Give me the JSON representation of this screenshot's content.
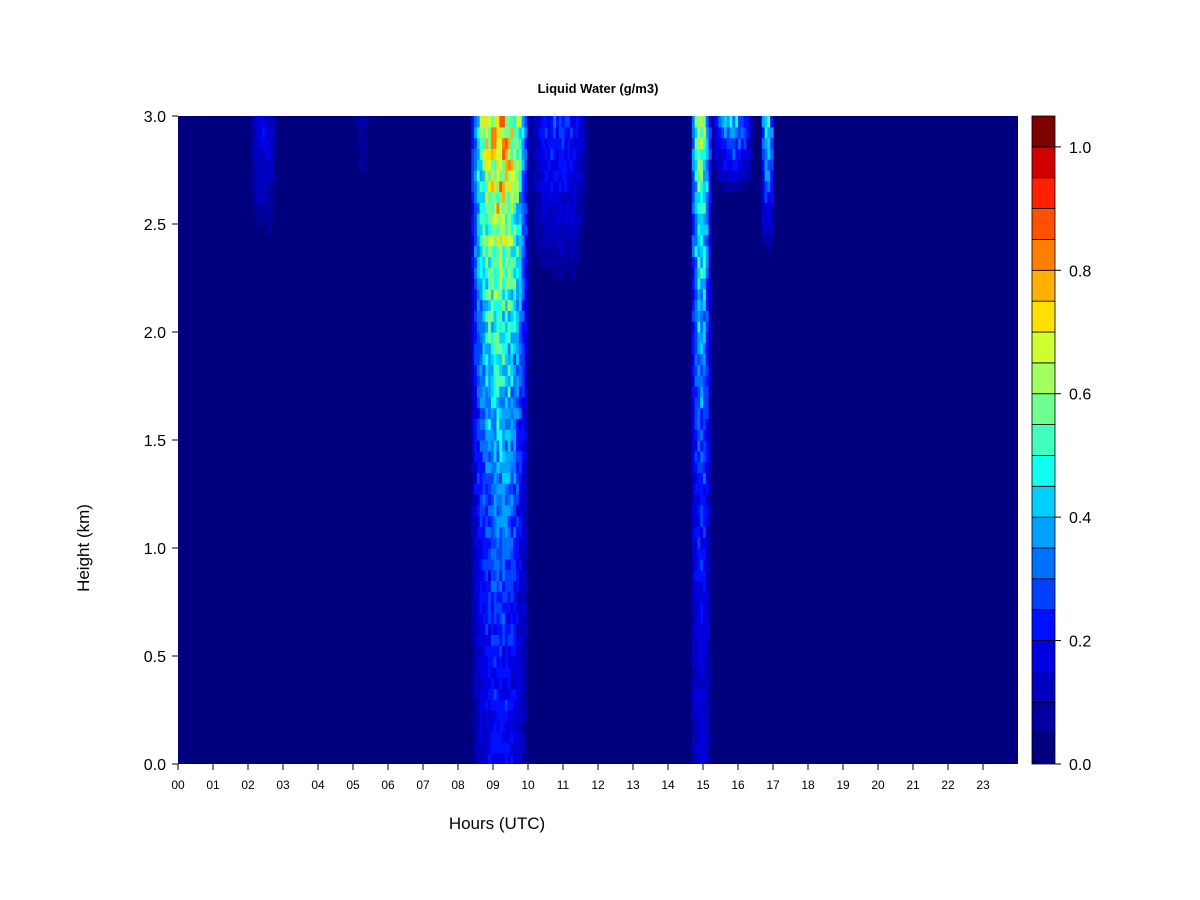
{
  "chart_data": {
    "type": "heatmap",
    "title": "Liquid Water (g/m3)",
    "xlabel": "Hours (UTC)",
    "ylabel": "Height (km)",
    "x_ticks": [
      "00",
      "01",
      "02",
      "03",
      "04",
      "05",
      "06",
      "07",
      "08",
      "09",
      "10",
      "11",
      "12",
      "13",
      "14",
      "15",
      "16",
      "17",
      "18",
      "19",
      "20",
      "21",
      "22",
      "23"
    ],
    "y_ticks": [
      "0.0",
      "0.5",
      "1.0",
      "1.5",
      "2.0",
      "2.5",
      "3.0"
    ],
    "xlim": [
      0,
      24
    ],
    "ylim": [
      0,
      3.0
    ],
    "colorbar": {
      "range": [
        0.0,
        1.05
      ],
      "step": 0.05,
      "ticks": [
        "0.0",
        "0.2",
        "0.4",
        "0.6",
        "0.8",
        "1.0"
      ],
      "colors": [
        "#00007f",
        "#0000a0",
        "#0000c0",
        "#0000e0",
        "#0010ff",
        "#0040ff",
        "#0070ff",
        "#00a0ff",
        "#00d0ff",
        "#10ffef",
        "#40ffbf",
        "#70ff8f",
        "#a0ff5f",
        "#d0ff2f",
        "#ffe000",
        "#ffb000",
        "#ff8000",
        "#ff5000",
        "#ff2000",
        "#d00000",
        "#7f0000"
      ]
    },
    "background_value": 0.0,
    "cloud_events": [
      {
        "start_hour": 2.0,
        "end_hour": 2.8,
        "bottom_km": 2.3,
        "top_km": 3.0,
        "peak": 0.25
      },
      {
        "start_hour": 5.0,
        "end_hour": 5.4,
        "bottom_km": 2.6,
        "top_km": 3.0,
        "peak": 0.15
      },
      {
        "start_hour": 8.3,
        "end_hour": 10.0,
        "bottom_km": 0.0,
        "top_km": 3.0,
        "peak": 1.0
      },
      {
        "start_hour": 10.0,
        "end_hour": 11.7,
        "bottom_km": 2.1,
        "top_km": 3.0,
        "peak": 0.35
      },
      {
        "start_hour": 14.6,
        "end_hour": 15.2,
        "bottom_km": 0.0,
        "top_km": 3.0,
        "peak": 0.75
      },
      {
        "start_hour": 15.2,
        "end_hour": 16.4,
        "bottom_km": 2.6,
        "top_km": 3.0,
        "peak": 0.55
      },
      {
        "start_hour": 16.6,
        "end_hour": 17.0,
        "bottom_km": 2.3,
        "top_km": 3.0,
        "peak": 0.6
      }
    ]
  }
}
